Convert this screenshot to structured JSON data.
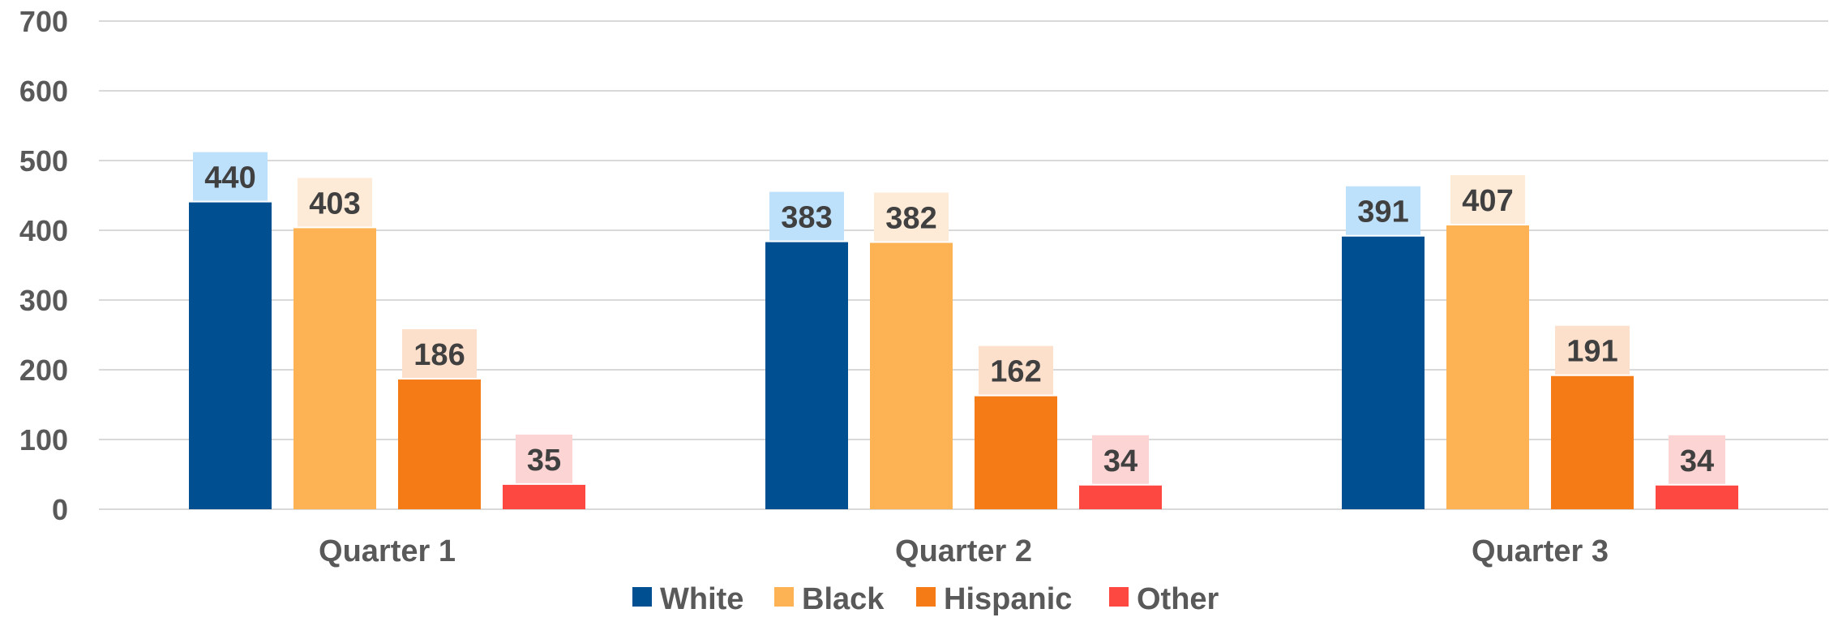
{
  "chart_data": {
    "type": "bar",
    "categories": [
      "Quarter 1",
      "Quarter 2",
      "Quarter 3"
    ],
    "series": [
      {
        "name": "White",
        "values": [
          440,
          383,
          391
        ],
        "color": "#004f90",
        "label_bg": "#bde0fb"
      },
      {
        "name": "Black",
        "values": [
          403,
          382,
          407
        ],
        "color": "#fdb253",
        "label_bg": "#fdebd7"
      },
      {
        "name": "Hispanic",
        "values": [
          186,
          162,
          191
        ],
        "color": "#f47b16",
        "label_bg": "#fde0cb"
      },
      {
        "name": "Other",
        "values": [
          35,
          34,
          34
        ],
        "color": "#fc4840",
        "label_bg": "#fdd4d4"
      }
    ],
    "yticks": [
      0,
      100,
      200,
      300,
      400,
      500,
      600,
      700
    ],
    "ylim": [
      0,
      700
    ],
    "grid": true,
    "legend": "bottom",
    "title": "",
    "xlabel": "",
    "ylabel": ""
  }
}
